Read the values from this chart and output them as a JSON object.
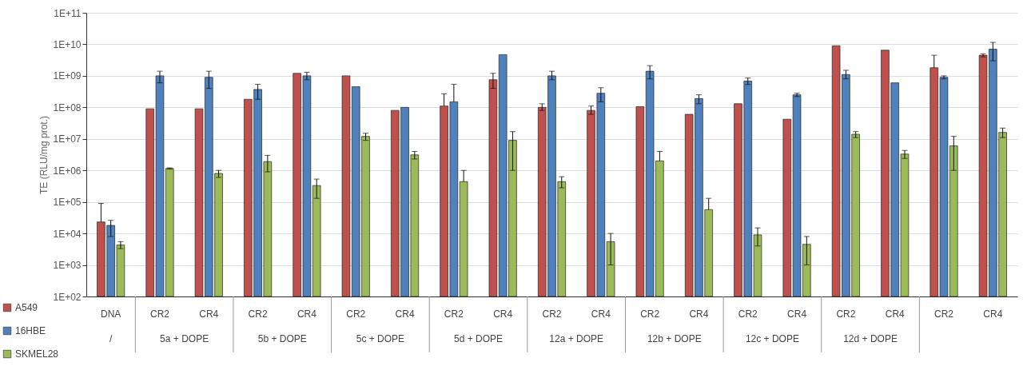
{
  "chart_data": {
    "type": "bar",
    "ylabel": "TE (RLU/mg prot.)",
    "log": true,
    "categories": [
      "DNA",
      "CR2",
      "CR4",
      "CR2",
      "CR4",
      "CR2",
      "CR4",
      "CR2",
      "CR4",
      "CR2",
      "CR4",
      "CR2",
      "CR4",
      "CR2",
      "CR4",
      "CR2",
      "CR4",
      "CR2",
      "CR4"
    ],
    "annotations": [
      "/",
      "5a + DOPE",
      "5b + DOPE",
      "5c + DOPE",
      "5d + DOPE",
      "12a + DOPE",
      "12b + DOPE",
      "12c + DOPE",
      "12d + DOPE"
    ],
    "series": [
      {
        "name": "A549",
        "color": "#c0504d",
        "values": [
          23000,
          90000000,
          90000000,
          180000000,
          1200000000,
          1000000000,
          80000000,
          110000000,
          750000000,
          100000000,
          80000000,
          105000000,
          60000000,
          130000000,
          42000000,
          9000000000,
          6500000000,
          1800000000,
          4500000000
        ],
        "errors": [
          [
            23000,
            90000
          ],
          null,
          null,
          null,
          null,
          null,
          null,
          [
            110000000,
            270000000
          ],
          [
            400000000,
            1200000000
          ],
          [
            80000000,
            130000000
          ],
          [
            60000000,
            110000000
          ],
          null,
          null,
          null,
          null,
          null,
          null,
          [
            1800000000,
            4500000000
          ],
          [
            4000000000,
            5000000000
          ]
        ]
      },
      {
        "name": "16HBE",
        "color": "#4f81bd",
        "values": [
          18000,
          1000000000,
          900000000,
          370000000,
          1000000000,
          450000000,
          100000000,
          150000000,
          4700000000,
          1000000000,
          280000000,
          1400000000,
          190000000,
          680000000,
          250000000,
          1100000000,
          600000000,
          900000000,
          7000000000
        ],
        "errors": [
          [
            8000,
            26000
          ],
          [
            600000000,
            1400000000
          ],
          [
            400000000,
            1400000000
          ],
          [
            180000000,
            540000000
          ],
          [
            750000000,
            1300000000
          ],
          null,
          null,
          [
            150000000,
            540000000
          ],
          null,
          [
            750000000,
            1400000000
          ],
          [
            150000000,
            420000000
          ],
          [
            800000000,
            2100000000
          ],
          [
            130000000,
            250000000
          ],
          [
            530000000,
            850000000
          ],
          [
            220000000,
            280000000
          ],
          [
            800000000,
            1500000000
          ],
          null,
          [
            800000000,
            1000000000
          ],
          [
            3000000000,
            11500000000
          ]
        ]
      },
      {
        "name": "SKMEL28",
        "color": "#9bbb59",
        "values": [
          4300,
          1150000,
          800000,
          1900000,
          330000,
          12000000,
          3100000,
          440000,
          9000000,
          440000,
          5500,
          2000000,
          57000,
          9000,
          4500,
          14000000,
          3300000,
          6000000,
          16000000
        ],
        "errors": [
          [
            3300,
            5500
          ],
          [
            1100000,
            1200000
          ],
          [
            600000,
            1000000
          ],
          [
            900000,
            3000000
          ],
          [
            130000,
            530000
          ],
          [
            9000000,
            15000000
          ],
          [
            2300000,
            4000000
          ],
          [
            440000,
            1000000
          ],
          [
            1000000,
            17000000
          ],
          [
            280000,
            630000
          ],
          [
            1000,
            10000
          ],
          [
            2000000,
            4000000
          ],
          [
            57000,
            130000
          ],
          [
            4000,
            15000
          ],
          [
            1000,
            8000
          ],
          [
            11000000,
            17000000
          ],
          [
            2400000,
            4300000
          ],
          [
            1000000,
            12000000
          ],
          [
            11000000,
            22000000
          ]
        ]
      }
    ],
    "ylim": [
      100,
      100000000000
    ],
    "yticks": [
      {
        "value": 100,
        "label": "1E+02"
      },
      {
        "value": 1000,
        "label": "1E+03"
      },
      {
        "value": 10000,
        "label": "1E+04"
      },
      {
        "value": 100000,
        "label": "1E+05"
      },
      {
        "value": 1000000,
        "label": "1E+06"
      },
      {
        "value": 10000000,
        "label": "1E+07"
      },
      {
        "value": 100000000,
        "label": "1E+08"
      },
      {
        "value": 1000000000,
        "label": "1E+09"
      },
      {
        "value": 10000000000,
        "label": "1E+10"
      },
      {
        "value": 100000000000,
        "label": "1E+11"
      }
    ],
    "grid": "y",
    "legend": "bottom left"
  }
}
